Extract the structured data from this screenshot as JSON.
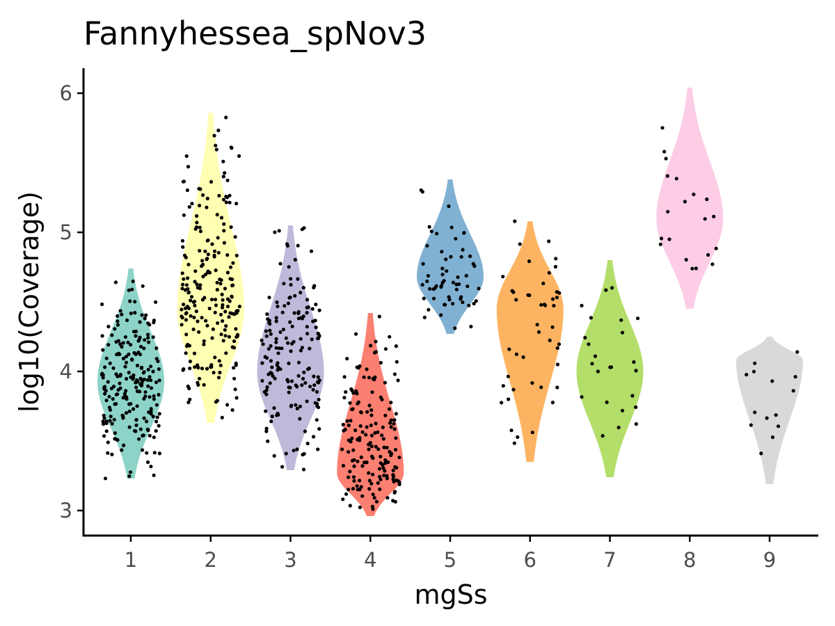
{
  "chart_data": {
    "type": "violin",
    "title": "Fannyhessea_spNov3",
    "xlabel": "mgSs",
    "ylabel": "log10(Coverage)",
    "categories": [
      "1",
      "2",
      "3",
      "4",
      "5",
      "6",
      "7",
      "8",
      "9"
    ],
    "y_ticks": [
      3,
      4,
      5,
      6
    ],
    "ylim": [
      2.82,
      6.18
    ],
    "legend": "none",
    "grid": false,
    "series": [
      {
        "category": "1",
        "color": "#8dd3c7",
        "min": 3.23,
        "max": 4.74,
        "mode": 3.93,
        "points": 220
      },
      {
        "category": "2",
        "color": "#ffffb3",
        "min": 3.63,
        "max": 5.86,
        "mode": 4.44,
        "points": 220
      },
      {
        "category": "3",
        "color": "#bebada",
        "min": 3.29,
        "max": 5.05,
        "mode": 3.99,
        "points": 170
      },
      {
        "category": "4",
        "color": "#fb8072",
        "min": 2.96,
        "max": 4.42,
        "mode": 3.27,
        "points": 170
      },
      {
        "category": "5",
        "color": "#80b1d3",
        "min": 4.27,
        "max": 5.38,
        "mode": 4.68,
        "points": 60
      },
      {
        "category": "6",
        "color": "#fdb462",
        "min": 3.35,
        "max": 5.08,
        "mode": 4.45,
        "points": 45
      },
      {
        "category": "7",
        "color": "#b3de69",
        "min": 3.24,
        "max": 4.8,
        "mode": 4.0,
        "points": 24
      },
      {
        "category": "8",
        "color": "#fccde5",
        "min": 4.45,
        "max": 6.04,
        "mode": 5.1,
        "points": 20
      },
      {
        "category": "9",
        "color": "#d9d9d9",
        "min": 3.19,
        "max": 4.25,
        "mode": 4.08,
        "points": 14
      }
    ]
  }
}
